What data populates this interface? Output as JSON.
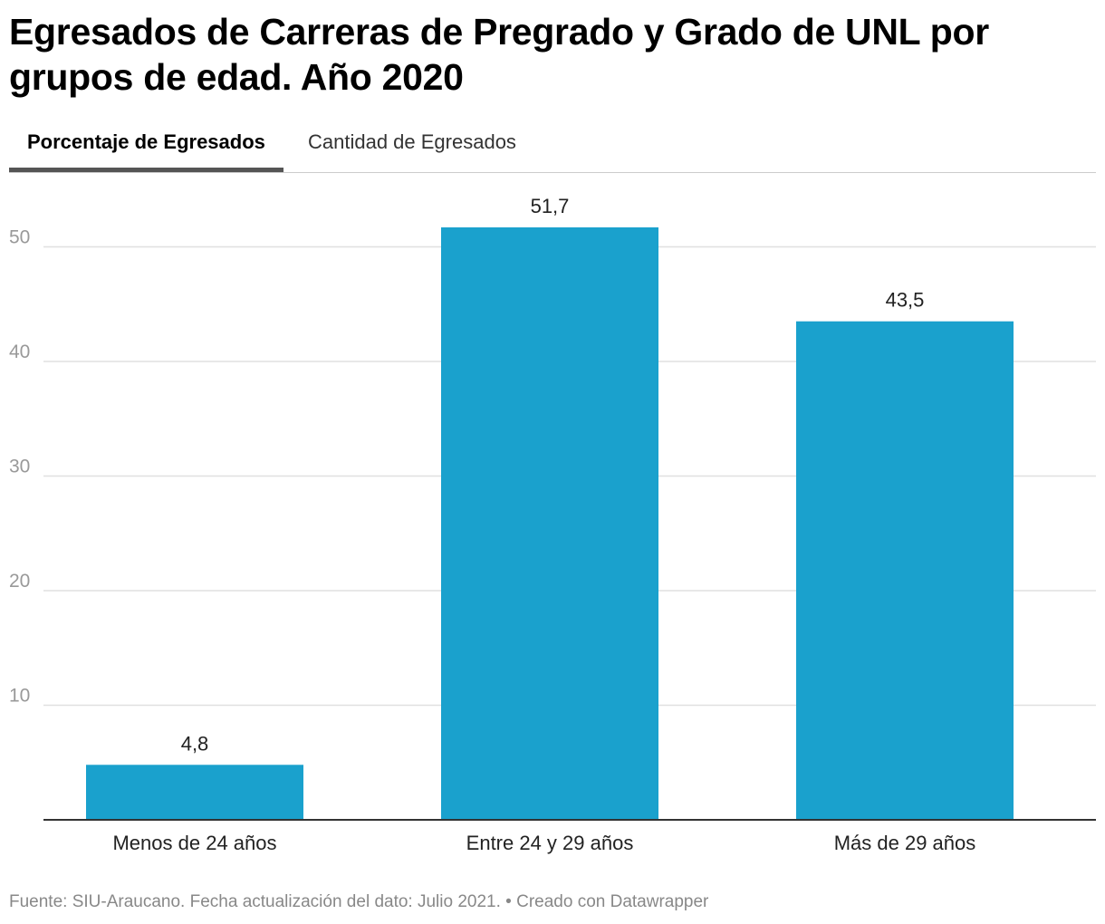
{
  "title": "Egresados de Carreras de Pregrado y Grado de UNL por grupos de edad. Año 2020",
  "tabs": [
    {
      "label": "Porcentaje de Egresados",
      "active": true
    },
    {
      "label": "Cantidad de Egresados",
      "active": false
    }
  ],
  "colors": {
    "bar": "#1aa1cd",
    "grid": "#e0e0e0",
    "axis": "#333333",
    "tick": "#999999"
  },
  "chart_data": {
    "type": "bar",
    "title": "Egresados de Carreras de Pregrado y Grado de UNL por grupos de edad. Año 2020",
    "xlabel": "",
    "ylabel": "",
    "categories": [
      "Menos de 24 años",
      "Entre 24 y 29 años",
      "Más de 29 años"
    ],
    "values": [
      4.8,
      51.7,
      43.5
    ],
    "value_labels": [
      "4,8",
      "51,7",
      "43,5"
    ],
    "ylim": [
      0,
      55
    ],
    "yticks": [
      10,
      20,
      30,
      40,
      50
    ],
    "grid": true
  },
  "footer": {
    "source": "Fuente: SIU-Araucano. Fecha actualización del dato: Julio 2021.",
    "credit": "• Creado con Datawrapper"
  }
}
